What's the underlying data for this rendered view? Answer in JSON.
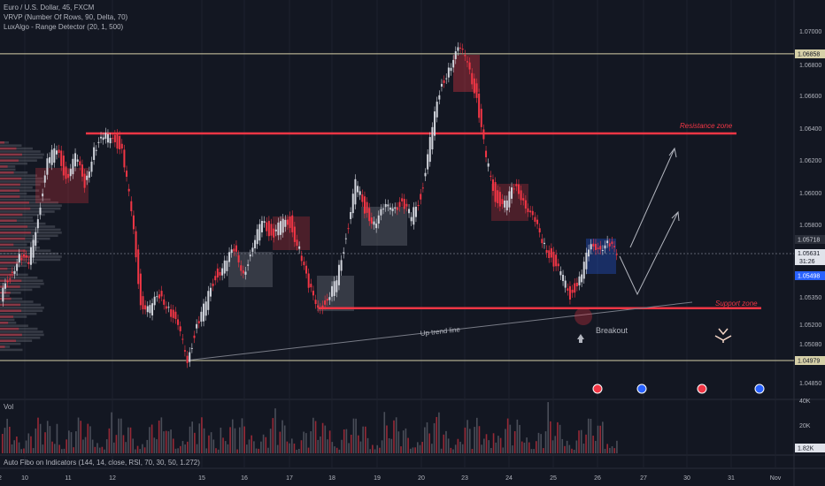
{
  "legend": {
    "symbol": "Euro / U.S. Dollar, 45, FXCM",
    "vrvp": "VRVP (Number Of Rows, 90, Delta, 70)",
    "luxalgo": "LuxAlgo - Range Detector (20, 1, 500)"
  },
  "volume_label": "Vol",
  "indicator_label": "Auto Fibo on Indicators (144, 14, close, RSI, 70, 30, 50, 1.272)",
  "annotations": {
    "resistance": "Resistance zone",
    "support": "Support zone",
    "uptrend": "Up trend line",
    "breakout": "Breakout"
  },
  "price_axis": {
    "ticks": [
      "1.07000",
      "1.06800",
      "1.06600",
      "1.06400",
      "1.06200",
      "1.06000",
      "1.05800",
      "1.05350",
      "1.05200",
      "1.05080",
      "1.04850"
    ],
    "highlight_high": "1.06858",
    "highlight_level": "1.05718",
    "current_price": "1.05631",
    "countdown": "31:26",
    "level_b": "1.05498",
    "low_level": "1.04979"
  },
  "volume_axis": {
    "ticks": [
      "40K",
      "20K"
    ],
    "current": "1.82K"
  },
  "time_axis": [
    "10",
    "11",
    "12",
    "15",
    "16",
    "17",
    "18",
    "19",
    "20",
    "23",
    "24",
    "25",
    "26",
    "27",
    "30",
    "31",
    "Nov",
    "2"
  ],
  "colors": {
    "background": "#131722",
    "up": "#d1d4dc",
    "down": "#f23645",
    "resistance": "#f23645",
    "support": "#f23645"
  },
  "chart_data": {
    "type": "candlestick",
    "symbol": "EURUSD",
    "timeframe": "45",
    "close_path": [
      1.0534,
      1.0552,
      1.0561,
      1.0556,
      1.0588,
      1.0618,
      1.0628,
      1.0611,
      1.0621,
      1.0607,
      1.0628,
      1.0632,
      1.0638,
      1.0625,
      1.0589,
      1.0535,
      1.0528,
      1.0538,
      1.0532,
      1.0516,
      1.05,
      1.0519,
      1.0532,
      1.0551,
      1.0556,
      1.0565,
      1.0554,
      1.0563,
      1.0586,
      1.0575,
      1.058,
      1.0583,
      1.0566,
      1.0541,
      1.0534,
      1.0531,
      1.0548,
      1.0575,
      1.0605,
      1.0591,
      1.0583,
      1.0588,
      1.0595,
      1.0593,
      1.0585,
      1.06,
      1.0631,
      1.0662,
      1.0679,
      1.0686,
      1.0684,
      1.0658,
      1.062,
      1.0599,
      1.0593,
      1.0603,
      1.0599,
      1.0583,
      1.0572,
      1.0562,
      1.0549,
      1.0539,
      1.0548,
      1.0564,
      1.057,
      1.0568,
      1.0563
    ],
    "levels": {
      "high": 1.06858,
      "resistance": 1.0637,
      "support": 1.053,
      "low": 1.04979
    }
  }
}
